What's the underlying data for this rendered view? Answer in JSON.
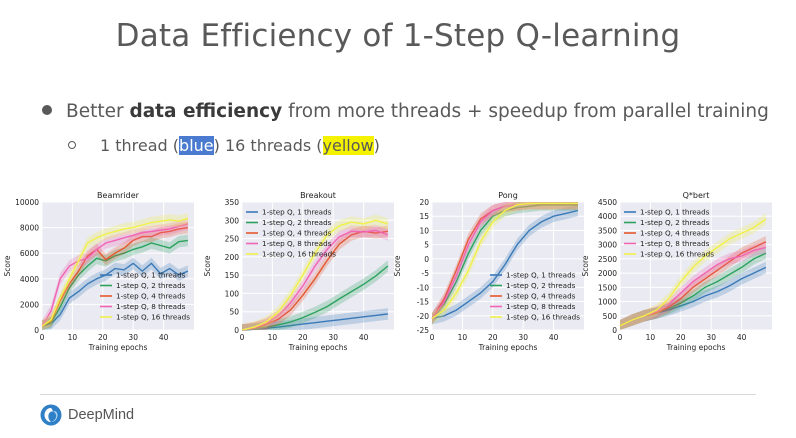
{
  "slide": {
    "title": "Data Efficiency of 1-Step Q-learning",
    "bullet": {
      "pre": "Better ",
      "bold": "data efficiency",
      "post": " from more threads + speedup from parallel training"
    },
    "sub": {
      "a": "1 thread (",
      "blue": "blue",
      "b": ") 16 threads (",
      "yellow": "yellow",
      "c": ")"
    },
    "logo_text": "DeepMind"
  },
  "colors": {
    "s1": "#3a7ab8",
    "s2": "#2ca25f",
    "s3": "#e4572e",
    "s4": "#f064b4",
    "s5": "#f0f04a",
    "bg": "#eaeaf2",
    "highlight_blue": "#4a7bd0",
    "highlight_yellow": "#f5f200"
  },
  "chart_data": [
    {
      "type": "line",
      "title": "Beamrider",
      "xlabel": "Training epochs",
      "ylabel": "Score",
      "xlim": [
        0,
        50
      ],
      "ylim": [
        0,
        10000
      ],
      "xticks": [
        0,
        10,
        20,
        30,
        40
      ],
      "yticks": [
        0,
        2000,
        4000,
        6000,
        8000,
        10000
      ],
      "legend_position": "bottom-right",
      "grid": true,
      "series": [
        {
          "name": "1-step Q, 1 threads",
          "x": [
            0,
            3,
            6,
            9,
            12,
            15,
            18,
            21,
            24,
            27,
            30,
            33,
            36,
            39,
            42,
            45,
            48
          ],
          "y": [
            300,
            500,
            1200,
            2500,
            3000,
            3600,
            4000,
            4300,
            4800,
            4700,
            5200,
            4600,
            5200,
            4400,
            4800,
            4300,
            4600
          ]
        },
        {
          "name": "1-step Q, 2 threads",
          "x": [
            0,
            3,
            6,
            9,
            12,
            15,
            18,
            21,
            24,
            27,
            30,
            33,
            36,
            39,
            42,
            45,
            48
          ],
          "y": [
            300,
            600,
            1800,
            3300,
            4300,
            5000,
            5600,
            5400,
            5800,
            6000,
            6300,
            6500,
            6800,
            6600,
            6400,
            6900,
            7000
          ]
        },
        {
          "name": "1-step Q, 4 threads",
          "x": [
            0,
            3,
            6,
            9,
            12,
            15,
            18,
            21,
            24,
            27,
            30,
            33,
            36,
            39,
            42,
            45,
            48
          ],
          "y": [
            300,
            700,
            2300,
            3600,
            4600,
            5800,
            6300,
            5500,
            6000,
            6400,
            7000,
            7300,
            7300,
            7600,
            7700,
            7900,
            8000
          ]
        },
        {
          "name": "1-step Q, 8 threads",
          "x": [
            0,
            3,
            6,
            9,
            12,
            15,
            18,
            21,
            24,
            27,
            30,
            33,
            36,
            39,
            42,
            45,
            48
          ],
          "y": [
            300,
            1500,
            4000,
            5000,
            5400,
            5600,
            6300,
            6800,
            7000,
            7200,
            7400,
            7600,
            7700,
            7800,
            7900,
            8100,
            8300
          ]
        },
        {
          "name": "1-step Q, 16 threads",
          "x": [
            0,
            3,
            6,
            9,
            12,
            15,
            18,
            21,
            24,
            27,
            30,
            33,
            36,
            39,
            42,
            45,
            48
          ],
          "y": [
            300,
            800,
            2500,
            4000,
            5400,
            6800,
            7200,
            7500,
            7700,
            7900,
            8000,
            8200,
            8400,
            8500,
            8600,
            8500,
            8700
          ]
        }
      ]
    },
    {
      "type": "line",
      "title": "Breakout",
      "xlabel": "Training epochs",
      "ylabel": "Score",
      "xlim": [
        0,
        50
      ],
      "ylim": [
        0,
        350
      ],
      "xticks": [
        0,
        10,
        20,
        30,
        40
      ],
      "yticks": [
        0,
        50,
        100,
        150,
        200,
        250,
        300,
        350
      ],
      "legend_position": "top-left",
      "grid": true,
      "series": [
        {
          "name": "1-step Q, 1 threads",
          "x": [
            0,
            4,
            8,
            12,
            16,
            20,
            24,
            28,
            32,
            36,
            40,
            44,
            48
          ],
          "y": [
            0,
            2,
            5,
            8,
            12,
            16,
            20,
            24,
            28,
            32,
            36,
            40,
            44
          ]
        },
        {
          "name": "1-step Q, 2 threads",
          "x": [
            0,
            4,
            8,
            12,
            16,
            20,
            24,
            28,
            32,
            36,
            40,
            44,
            48
          ],
          "y": [
            0,
            3,
            8,
            14,
            22,
            34,
            48,
            64,
            85,
            105,
            125,
            148,
            175
          ]
        },
        {
          "name": "1-step Q, 4 threads",
          "x": [
            0,
            4,
            8,
            12,
            16,
            20,
            24,
            28,
            32,
            36,
            40,
            44,
            48
          ],
          "y": [
            0,
            5,
            15,
            30,
            55,
            95,
            140,
            190,
            235,
            260,
            270,
            265,
            270
          ]
        },
        {
          "name": "1-step Q, 8 threads",
          "x": [
            0,
            4,
            8,
            12,
            16,
            20,
            24,
            28,
            32,
            36,
            40,
            44,
            48
          ],
          "y": [
            0,
            6,
            18,
            40,
            75,
            120,
            175,
            220,
            255,
            270,
            268,
            272,
            260
          ]
        },
        {
          "name": "1-step Q, 16 threads",
          "x": [
            0,
            4,
            8,
            12,
            16,
            20,
            24,
            28,
            32,
            36,
            40,
            44,
            48
          ],
          "y": [
            0,
            8,
            22,
            50,
            95,
            150,
            210,
            260,
            285,
            295,
            290,
            300,
            290
          ]
        }
      ]
    },
    {
      "type": "line",
      "title": "Pong",
      "xlabel": "Training epochs",
      "ylabel": "Score",
      "xlim": [
        0,
        50
      ],
      "ylim": [
        -25,
        20
      ],
      "xticks": [
        0,
        10,
        20,
        30,
        40
      ],
      "yticks": [
        -25,
        -20,
        -15,
        -10,
        -5,
        0,
        5,
        10,
        15,
        20
      ],
      "legend_position": "bottom-right",
      "grid": true,
      "series": [
        {
          "name": "1-step Q, 1 threads",
          "x": [
            0,
            4,
            8,
            12,
            16,
            20,
            24,
            28,
            32,
            36,
            40,
            44,
            48
          ],
          "y": [
            -21,
            -20,
            -18,
            -15,
            -12,
            -8,
            -2,
            5,
            10,
            13,
            15,
            16,
            17
          ]
        },
        {
          "name": "1-step Q, 2 threads",
          "x": [
            0,
            4,
            8,
            12,
            16,
            20,
            24,
            28,
            32,
            36,
            40,
            44,
            48
          ],
          "y": [
            -21,
            -16,
            -8,
            2,
            10,
            15,
            17,
            18,
            18.5,
            19,
            19,
            19,
            19
          ]
        },
        {
          "name": "1-step Q, 4 threads",
          "x": [
            0,
            4,
            8,
            12,
            16,
            20,
            24,
            28,
            32,
            36,
            40,
            44,
            48
          ],
          "y": [
            -21,
            -14,
            -4,
            7,
            14,
            17,
            18.5,
            19,
            19.5,
            19.5,
            19.5,
            19.5,
            19.5
          ]
        },
        {
          "name": "1-step Q, 8 threads",
          "x": [
            0,
            4,
            8,
            12,
            16,
            20,
            24,
            28,
            32,
            36,
            40,
            44,
            48
          ],
          "y": [
            -21,
            -15,
            -6,
            5,
            13,
            17,
            18.5,
            19,
            19.5,
            19.5,
            19.5,
            19.5,
            19.5
          ]
        },
        {
          "name": "1-step Q, 16 threads",
          "x": [
            0,
            4,
            8,
            12,
            16,
            20,
            24,
            28,
            32,
            36,
            40,
            44,
            48
          ],
          "y": [
            -21,
            -18,
            -12,
            -4,
            6,
            13,
            17,
            19,
            19.5,
            19.5,
            19.5,
            19.5,
            19.5
          ]
        }
      ]
    },
    {
      "type": "line",
      "title": "Q*bert",
      "xlabel": "Training epochs",
      "ylabel": "Score",
      "xlim": [
        0,
        50
      ],
      "ylim": [
        0,
        4500
      ],
      "xticks": [
        0,
        10,
        20,
        30,
        40
      ],
      "yticks": [
        0,
        500,
        1000,
        1500,
        2000,
        2500,
        3000,
        3500,
        4000,
        4500
      ],
      "legend_position": "top-left",
      "grid": true,
      "series": [
        {
          "name": "1-step Q, 1 threads",
          "x": [
            0,
            4,
            8,
            12,
            16,
            20,
            24,
            28,
            32,
            36,
            40,
            44,
            48
          ],
          "y": [
            150,
            350,
            500,
            600,
            700,
            850,
            1000,
            1200,
            1350,
            1550,
            1800,
            2000,
            2200
          ]
        },
        {
          "name": "1-step Q, 2 threads",
          "x": [
            0,
            4,
            8,
            12,
            16,
            20,
            24,
            28,
            32,
            36,
            40,
            44,
            48
          ],
          "y": [
            150,
            350,
            500,
            600,
            750,
            950,
            1200,
            1500,
            1700,
            1950,
            2200,
            2500,
            2700
          ]
        },
        {
          "name": "1-step Q, 4 threads",
          "x": [
            0,
            4,
            8,
            12,
            16,
            20,
            24,
            28,
            32,
            36,
            40,
            44,
            48
          ],
          "y": [
            150,
            350,
            500,
            600,
            800,
            1100,
            1500,
            1800,
            2100,
            2400,
            2700,
            2900,
            3100
          ]
        },
        {
          "name": "1-step Q, 8 threads",
          "x": [
            0,
            4,
            8,
            12,
            16,
            20,
            24,
            28,
            32,
            36,
            40,
            44,
            48
          ],
          "y": [
            150,
            350,
            500,
            650,
            900,
            1300,
            1700,
            2000,
            2300,
            2500,
            2600,
            2800,
            2900
          ]
        },
        {
          "name": "1-step Q, 16 threads",
          "x": [
            0,
            4,
            8,
            12,
            16,
            20,
            24,
            28,
            32,
            36,
            40,
            44,
            48
          ],
          "y": [
            150,
            350,
            500,
            700,
            1100,
            1700,
            2200,
            2600,
            2900,
            3200,
            3400,
            3600,
            3900
          ]
        }
      ]
    }
  ]
}
